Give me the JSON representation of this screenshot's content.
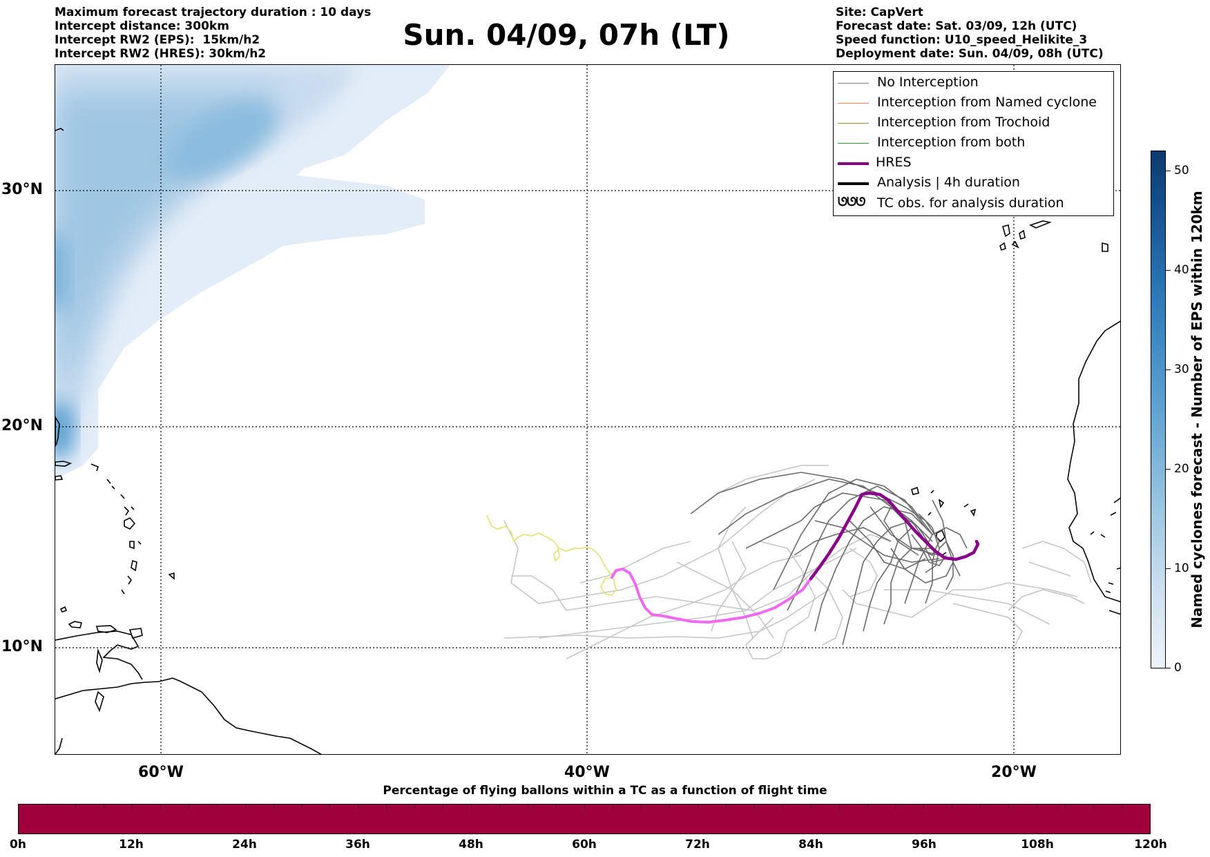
{
  "header_left": [
    "Maximum forecast trajectory duration : 10 days",
    "Intercept distance: 300km",
    "Intercept RW2 (EPS):  15km/h2",
    "Intercept RW2 (HRES): 30km/h2"
  ],
  "header_right": [
    "Site: CapVert",
    "Forecast date: Sat. 03/09, 12h (UTC)",
    "Speed function: U10_speed_Helikite_3",
    "Deployment date: Sun. 04/09, 08h (UTC)"
  ],
  "title": "Sun. 04/09, 07h (LT)",
  "map": {
    "lat_labels": [
      "30°N",
      "20°N",
      "10°N"
    ],
    "lon_labels": [
      "60°W",
      "40°W",
      "20°W"
    ],
    "gridlines": true,
    "colors": {
      "hres": "#8b008b",
      "hres_past": "#ee6aee",
      "no_interception": "#6e6e6e",
      "no_interception_light": "#c8c8c8",
      "early_track": "#e8e27a",
      "coast": "#000000"
    }
  },
  "legend": {
    "placement": "top-right",
    "items": [
      {
        "label": "No Interception",
        "color": "#808080",
        "style": "thin"
      },
      {
        "label": "Interception from Named cyclone",
        "color": "#ff7f50",
        "style": "thin"
      },
      {
        "label": "Interception from Trochoid",
        "color": "#9a8a3a",
        "style": "thin"
      },
      {
        "label": "Interception from both",
        "color": "#2ca02c",
        "style": "thin"
      },
      {
        "label": "HRES",
        "color": "#8b008b",
        "style": "thick"
      },
      {
        "label": "Analysis | 4h duration",
        "color": "#000000",
        "style": "thick"
      },
      {
        "label": "TC obs. for analysis duration",
        "color": "#000000",
        "style": "symbol",
        "symbol": "ᘎᘎᘎ"
      }
    ]
  },
  "colorbar": {
    "title": "Named cyclones forecast - Number of EPS within 120km",
    "ticks": [
      "0",
      "10",
      "20",
      "30",
      "40",
      "50"
    ],
    "range": [
      0,
      52
    ]
  },
  "bottom_bar": {
    "title": "Percentage of flying ballons within a TC as a function of flight time",
    "color": "#a0003c",
    "tick_labels": [
      "0h",
      "12h",
      "24h",
      "36h",
      "48h",
      "60h",
      "72h",
      "84h",
      "96h",
      "108h",
      "120h"
    ]
  }
}
